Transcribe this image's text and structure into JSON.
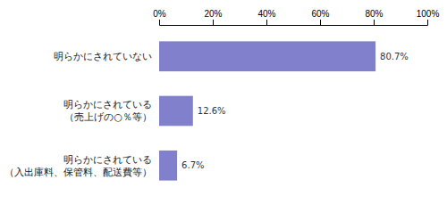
{
  "chart_data": {
    "type": "bar",
    "orientation": "horizontal",
    "categories": [
      "明らかにされていない",
      "明らかにされている\n（売上げの○％等）",
      "明らかにされている\n（入出庫料、保管料、配送費等）"
    ],
    "values": [
      80.7,
      12.6,
      6.7
    ],
    "value_labels": [
      "80.7%",
      "12.6%",
      "6.7%"
    ],
    "data_labels": true,
    "color": "#8080cc",
    "xlim": [
      0,
      100
    ],
    "xticks": [
      {
        "value": 0,
        "label": "0%"
      },
      {
        "value": 20,
        "label": "20%"
      },
      {
        "value": 40,
        "label": "40%"
      },
      {
        "value": 60,
        "label": "60%"
      },
      {
        "value": 80,
        "label": "80%"
      },
      {
        "value": 100,
        "label": "100%"
      }
    ],
    "grid": false
  }
}
